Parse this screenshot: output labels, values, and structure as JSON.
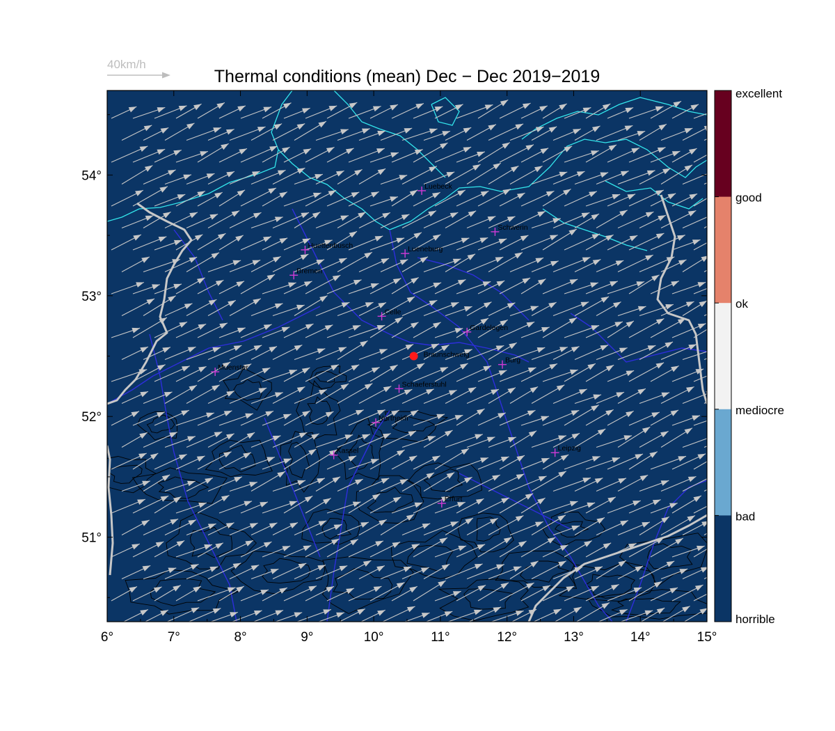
{
  "title": "Thermal conditions (mean) Dec − Dec  2019−2019",
  "reference_arrow": {
    "label": "40km/h",
    "speed_kmh": 40
  },
  "colors": {
    "background": "#0b3565",
    "arrow": "#c8c8c8",
    "coast": "#33e6ec",
    "rivers": "#2e2edc",
    "borders": "#c8c8c8",
    "contours": "#000000",
    "city_marker": "#d13ad6",
    "home_marker": "#ff1a1a"
  },
  "chart_data": {
    "type": "map",
    "x_range": [
      6,
      15
    ],
    "y_range": [
      50.3,
      54.7
    ],
    "x_ticks": [
      6,
      7,
      8,
      9,
      10,
      11,
      12,
      13,
      14,
      15
    ],
    "x_tick_labels": [
      "6°",
      "7°",
      "8°",
      "9°",
      "10°",
      "11°",
      "12°",
      "13°",
      "14°",
      "15°"
    ],
    "y_ticks": [
      51,
      52,
      53,
      54
    ],
    "y_tick_labels": [
      "51°",
      "52°",
      "53°",
      "54°"
    ],
    "home": {
      "name": "Braunschweig",
      "lon": 10.6,
      "lat": 52.5
    },
    "cities": [
      {
        "name": "Luebeck",
        "lon": 10.72,
        "lat": 53.87
      },
      {
        "name": "Schwerin",
        "lon": 11.82,
        "lat": 53.53
      },
      {
        "name": "Huettenbusch",
        "lon": 8.97,
        "lat": 53.38
      },
      {
        "name": "Lueneburg",
        "lon": 10.47,
        "lat": 53.35
      },
      {
        "name": "Bremen",
        "lon": 8.8,
        "lat": 53.17
      },
      {
        "name": "Celle",
        "lon": 10.12,
        "lat": 52.83
      },
      {
        "name": "Gardelegen",
        "lon": 11.4,
        "lat": 52.7
      },
      {
        "name": "Muenster",
        "lon": 7.62,
        "lat": 52.37
      },
      {
        "name": "Burg",
        "lon": 11.93,
        "lat": 52.43
      },
      {
        "name": "Schaeferstuhl",
        "lon": 10.38,
        "lat": 52.23
      },
      {
        "name": "Northeim",
        "lon": 10.03,
        "lat": 51.95
      },
      {
        "name": "Kassel",
        "lon": 9.4,
        "lat": 51.68
      },
      {
        "name": "Leipzig",
        "lon": 12.72,
        "lat": 51.7
      },
      {
        "name": "Erfurt",
        "lon": 11.02,
        "lat": 51.28
      }
    ],
    "wind_field": {
      "direction": "from WSW",
      "u_kmh": 36,
      "v_kmh": 17
    },
    "colorbar": {
      "categories": [
        {
          "label": "excellent",
          "color": "#67001f"
        },
        {
          "label": "good",
          "color": "#67001f"
        },
        {
          "label": "ok",
          "color": "#e5826b"
        },
        {
          "label": "mediocre",
          "color": "#f2f2f2"
        },
        {
          "label": "bad",
          "color": "#6aa8d0"
        },
        {
          "label": "horrible",
          "color": "#0b3565"
        }
      ]
    }
  }
}
